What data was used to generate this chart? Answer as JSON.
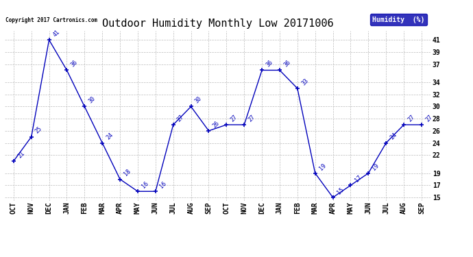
{
  "title": "Outdoor Humidity Monthly Low 20171006",
  "copyright": "Copyright 2017 Cartronics.com",
  "legend_label": "Humidity  (%)",
  "months": [
    "OCT",
    "NOV",
    "DEC",
    "JAN",
    "FEB",
    "MAR",
    "APR",
    "MAY",
    "JUN",
    "JUL",
    "AUG",
    "SEP",
    "OCT",
    "NOV",
    "DEC",
    "JAN",
    "FEB",
    "MAR",
    "APR",
    "MAY",
    "JUN",
    "JUL",
    "AUG",
    "SEP"
  ],
  "values": [
    21,
    25,
    41,
    36,
    30,
    24,
    18,
    16,
    16,
    27,
    30,
    26,
    27,
    27,
    36,
    36,
    33,
    19,
    15,
    17,
    19,
    24,
    27,
    27
  ],
  "ylim_min": 14.5,
  "ylim_max": 42.5,
  "yticks": [
    15,
    17,
    19,
    22,
    24,
    26,
    28,
    30,
    32,
    34,
    37,
    39,
    41
  ],
  "line_color": "#0000BB",
  "bg_color": "#ffffff",
  "grid_color": "#bbbbbb",
  "title_fontsize": 11,
  "tick_fontsize": 7,
  "annot_fontsize": 6,
  "legend_bg": "#0000AA",
  "legend_text_color": "#ffffff"
}
